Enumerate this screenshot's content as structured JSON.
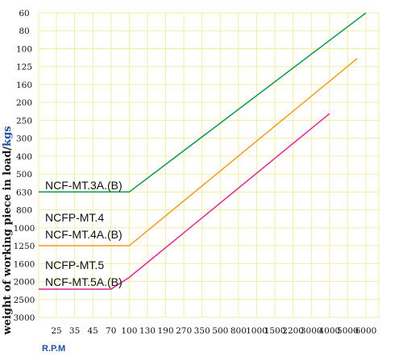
{
  "chart_data": {
    "type": "line",
    "y_label": {
      "prefix": "weight of working piece in load/",
      "unit": "kgs"
    },
    "x_label": "R.P.M",
    "x_ticks": [
      "25",
      "35",
      "45",
      "70",
      "100",
      "130",
      "190",
      "270",
      "350",
      "500",
      "800",
      "1000",
      "1500",
      "2200",
      "3000",
      "4000",
      "5000",
      "6000"
    ],
    "y_ticks": [
      "60",
      "80",
      "100",
      "125",
      "160",
      "200",
      "250",
      "300",
      "400",
      "500",
      "630",
      "800",
      "1000",
      "1250",
      "1600",
      "2000",
      "2500",
      "3000"
    ],
    "y_axis_inverted": true,
    "grid": true,
    "grid_color": "#f0eda8",
    "series": [
      {
        "labels": [
          "NCF-MT.3A.(B)"
        ],
        "color": "#1e9a57",
        "points": [
          {
            "x": "25",
            "y": "630"
          },
          {
            "x": "100",
            "y": "630"
          },
          {
            "x": "6000",
            "y": "60"
          }
        ]
      },
      {
        "labels": [
          "NCFP-MT.4",
          "NCF-MT.4A.(B)"
        ],
        "color": "#f0a030",
        "points": [
          {
            "x": "25",
            "y": "1250"
          },
          {
            "x": "100",
            "y": "1250"
          },
          {
            "x": "5500",
            "y": "113"
          }
        ]
      },
      {
        "labels": [
          "NCFP-MT.5",
          "NCF-MT.5A.(B)"
        ],
        "color": "#e0359a",
        "points": [
          {
            "x": "25",
            "y": "2200"
          },
          {
            "x": "70",
            "y": "2200"
          },
          {
            "x": "100",
            "y": "1900"
          },
          {
            "x": "4000",
            "y": "230"
          }
        ]
      }
    ]
  }
}
